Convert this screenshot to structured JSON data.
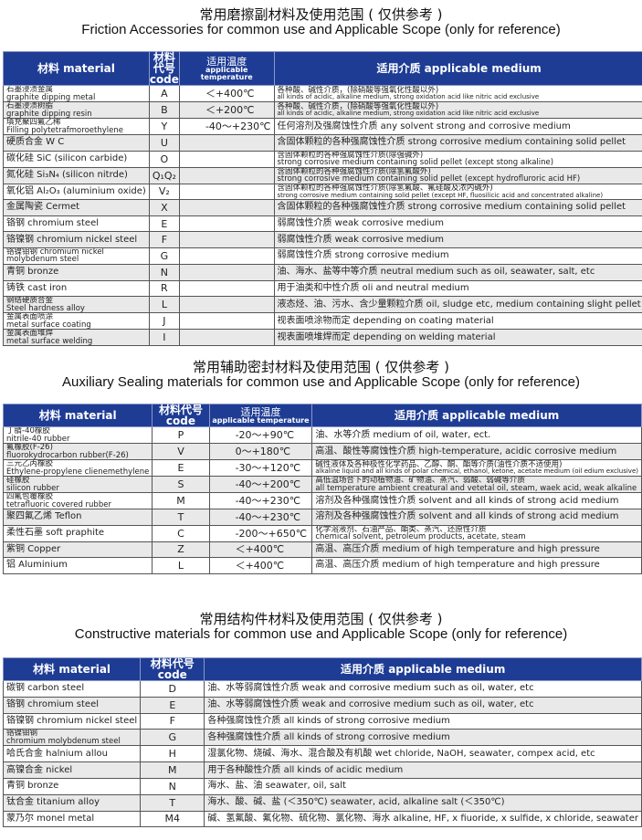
{
  "sections": [
    {
      "title_cn": "常用磨擦副材料及使用范围 ( 仅供参考 )",
      "title_en": "Friction Accessories for common use and Applicable Scope (only for reference)",
      "headers": {
        "material": "材料 material",
        "code": "材料代号 code",
        "temp_cn": "适用温度",
        "temp_en": "applicable temperature",
        "medium": "适用介质 applicable medium"
      },
      "rows": [
        {
          "material": [
            "石墨浸渍金属",
            "graphite dipping metal"
          ],
          "code": "A",
          "temp": "＜+400℃",
          "medium": [
            "各种酸、碱性介质，(除硝酸等强氧化性酸以外)",
            "all kinds of acidic, alkaline medium, strong oxidation acid like nitric acid exclusive"
          ]
        },
        {
          "material": [
            "石墨浸渍树脂",
            "graphite dipping resin"
          ],
          "code": "B",
          "temp": "＜+200℃",
          "medium": [
            "各种酸、碱性介质，(除硝酸等强氧化性酸以外)",
            "all kinds of acidic, alkaline medium, strong oxidation acid like nitric acid exclusive"
          ]
        },
        {
          "material": [
            "填充聚四氟乙稀",
            "Filling polytetrafmoroethylene"
          ],
          "code": "Y",
          "temp": "-40～+230℃",
          "medium": [
            "任何溶剂及强腐蚀性介质 any solvent strong  and corrosive medium"
          ]
        },
        {
          "material": [
            "硬质合金 W C"
          ],
          "code": "U",
          "temp": "",
          "medium": [
            "含固体颗粒的各种强腐蚀性介质 strong corrosive medium containing solid pellet"
          ]
        },
        {
          "material": [
            "碳化硅 SiC (silicon carbide)"
          ],
          "code": "O",
          "temp": "",
          "medium": [
            "含固体颗粒的各种强腐蚀性介质(除强碱外)",
            "strong corrosive medium containing solid pellet (except stong alkaline)"
          ]
        },
        {
          "material": [
            "氮化硅 Si₃N₄ (silicon nitrde)"
          ],
          "code": "Q₁Q₂",
          "temp": "",
          "medium": [
            "含固体颗粒的各种强腐蚀性介质(除氢氟酸外)",
            "strong corrosive medium containing solid pellet (except hydrofluroric acid HF)"
          ]
        },
        {
          "material": [
            "氧化铝 Al₂O₃ (aluminium oxide)"
          ],
          "code": "V₂",
          "temp": "",
          "medium": [
            "含固体颗粒的各种强腐蚀性介质(除氢氟酸、氟硅酸及浓内碱外)",
            "strong corrosive medium containing solid pellet (except HF, fluosilicic acid and concentrated alkaline)"
          ]
        },
        {
          "material": [
            "金属陶瓷 Cermet"
          ],
          "code": "X",
          "temp": "",
          "medium": [
            "含固体颗粒的各种强腐蚀性介质 strong corrosive medium containing solid pellet"
          ]
        },
        {
          "material": [
            "铬钢 chromium steel"
          ],
          "code": "E",
          "temp": "",
          "medium": [
            "弱腐蚀性介质 weak corrosive medium"
          ]
        },
        {
          "material": [
            "铬镍钢 chromium nickel steel"
          ],
          "code": "F",
          "temp": "",
          "medium": [
            "弱腐蚀性介质 weak corrosive medium"
          ]
        },
        {
          "material": [
            "铬镍钼钢 chromium nickel",
            "molybdenum steel"
          ],
          "code": "G",
          "temp": "",
          "medium": [
            "弱腐蚀性介质 strong corrosive medium"
          ]
        },
        {
          "material": [
            "青铜 bronze"
          ],
          "code": "N",
          "temp": "",
          "medium": [
            "油、海水、盐等中等介质 neutral medium such as oil, seawater, salt, etc"
          ]
        },
        {
          "material": [
            "铸铁 cast iron"
          ],
          "code": "R",
          "temp": "",
          "medium": [
            "用于油类和中性介质 oli and neutral medium"
          ]
        },
        {
          "material": [
            "钢结硬质合金",
            "Steel hardness alloy"
          ],
          "code": "L",
          "temp": "",
          "medium": [
            "液态烃、油、污水、含少量颗粒介质 oil, sludge etc, medium containing slight pellet"
          ]
        },
        {
          "material": [
            "金属表面喷涂",
            "metal surface coating"
          ],
          "code": "J",
          "temp": "",
          "medium": [
            "视表面喷涂物而定 depending on coating material"
          ]
        },
        {
          "material": [
            "金属表面堆焊",
            "metal surface welding"
          ],
          "code": "I",
          "temp": "",
          "medium": [
            "视表面喷堆焊而定 depending on welding material"
          ]
        }
      ]
    },
    {
      "title_cn": "常用辅助密封材料及使用范围 ( 仅供参考 )",
      "title_en": "Auxiliary Sealing materials  for common use and Applicable Scope (only for reference)",
      "headers": {
        "material": "材料 material",
        "code": "材料代号 code",
        "temp_cn": "适用温度",
        "temp_en": "applicable temperature",
        "medium": "适用介质 applicable medium"
      },
      "rows": [
        {
          "material": [
            "丁腈-40橡胶",
            "nitrile-40 rubber"
          ],
          "code": "P",
          "temp": "-20～+90℃",
          "medium": [
            "油、水等介质 medium of oil, water, ect."
          ]
        },
        {
          "material": [
            "氟橡胶(F-26)",
            "fluorokydrocarbon rubber(F-26)"
          ],
          "code": "V",
          "temp": "0～+180℃",
          "medium": [
            "高温、酸性等腐蚀性介质 high-temperature, acidic corrosive medium"
          ]
        },
        {
          "material": [
            "三元乙丙橡胶",
            "Ethylene-propylene clienemethylene"
          ],
          "code": "E",
          "temp": "-30～+120℃",
          "medium": [
            "碱性液体及各种极性化学药品、乙醇、酮、酯等介质(油性介质不适使用)",
            "alkaline liquid and all kinds of polar chemical, ethanol, ketone, acetate medium (oil edium exclusive)"
          ]
        },
        {
          "material": [
            "硅橡胶",
            "silicon rubber"
          ],
          "code": "S",
          "temp": "-40～+200℃",
          "medium": [
            "高低温场合下的动植物油、矿物油、蒸汽、弱酸、弱碱等介质",
            "all temperature ambient creatural and vetetal oil, steam, waek acid, weak alkaline"
          ]
        },
        {
          "material": [
            "四氟包覆橡胶",
            "tetrafluoric covered rubber"
          ],
          "code": "M",
          "temp": "-40～+230℃",
          "medium": [
            "溶剂及各种强腐蚀性介质 solvent and all kinds of strong acid medium"
          ]
        },
        {
          "material": [
            "聚四氟乙烯 Teflon"
          ],
          "code": "T",
          "temp": "-40～+230℃",
          "medium": [
            "溶剂及各种强腐蚀性介质 solvent and all kinds of strong acid medium"
          ]
        },
        {
          "material": [
            "柔性石墨 soft praphite"
          ],
          "code": "C",
          "temp": "-200～+650℃",
          "medium": [
            "化学溶液剂、石油产品、酯类、蒸汽、还原性介质",
            "chemical solvent, petroleum products, acetate, steam"
          ]
        },
        {
          "material": [
            "紫铜 Copper"
          ],
          "code": "Z",
          "temp": "＜+400℃",
          "medium": [
            "高温、高压介质 medium of high temperature and high pressure"
          ]
        },
        {
          "material": [
            "铝 Aluminium"
          ],
          "code": "L",
          "temp": "＜+400℃",
          "medium": [
            "高温、高压介质 medium of high temperature and high pressure"
          ]
        }
      ]
    },
    {
      "title_cn": "常用结构件材料及使用范围 ( 仅供参考 )",
      "title_en": "Constructive materials for common use and Applicable Scope (only for reference)",
      "headers": {
        "material": "材料 material",
        "code": "材料代号 code",
        "medium": "适用介质 applicable medium"
      },
      "rows": [
        {
          "material": [
            "碳钢 carbon steel"
          ],
          "code": "D",
          "medium": [
            "油、水等弱腐蚀性介质 weak and corrosive medium such as oil, water, etc"
          ]
        },
        {
          "material": [
            "铬钢 chromium steel"
          ],
          "code": "E",
          "medium": [
            "油、水等弱腐蚀性介质 weak and corrosive medium such as oil, water, etc"
          ]
        },
        {
          "material": [
            "铬镍钢 chromium nickel steel"
          ],
          "code": "F",
          "medium": [
            "各种强腐蚀性介质 all kinds of strong corrosive medium"
          ]
        },
        {
          "material": [
            "铬镍钼钢",
            "chromium molybdenum steel"
          ],
          "code": "G",
          "medium": [
            "各种强腐蚀性介质 all kinds of strong corrosive medium"
          ]
        },
        {
          "material": [
            "哈氏合金 halnium allou"
          ],
          "code": "H",
          "medium": [
            "湿氯化物、烧碱、海水、混合酸及有机酸 wet chloride, NaOH, seawater, compex acid, etc"
          ]
        },
        {
          "material": [
            "高镍合金 nickel"
          ],
          "code": "M",
          "medium": [
            "用于各种酸性介质 all kinds of acidic medium"
          ]
        },
        {
          "material": [
            "青铜 bronze"
          ],
          "code": "N",
          "medium": [
            "海水、盐、油 seawater, oil, salt"
          ]
        },
        {
          "material": [
            "钛合金 titanium alloy"
          ],
          "code": "T",
          "medium": [
            "海水、酸、碱、盐 (＜350℃) seawater, acid, alkaline salt (＜350℃)"
          ]
        },
        {
          "material": [
            "蒙乃尔 monel metal"
          ],
          "code": "M4",
          "medium": [
            "碱、氢氟酸、氟化物、硫化物、氯化物、海水 alkaline, HF, x fiuoride, x sulfide, x chloride, seawater"
          ]
        }
      ]
    }
  ],
  "colors": {
    "header_bg": "#1e3c94",
    "header_text": "#ffffff",
    "alt_row": "#e9e9e9",
    "border": "#555555"
  }
}
